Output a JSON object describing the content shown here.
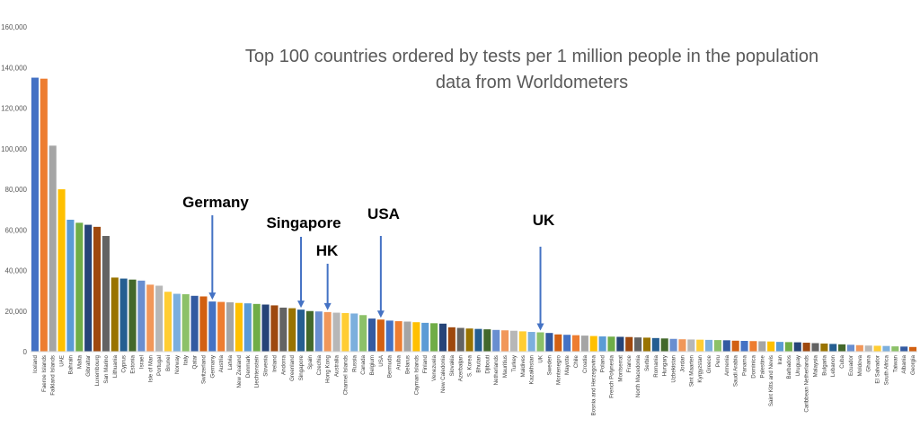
{
  "chart_data": {
    "type": "bar",
    "title_lines": [
      "Top 100 countries ordered by tests per 1 million people in the population",
      "data from Worldometers"
    ],
    "xlabel": "",
    "ylabel": "",
    "ylim": [
      0,
      160000
    ],
    "y_ticks": [
      "0",
      "20,000",
      "40,000",
      "60,000",
      "80,000",
      "100,000",
      "120,000",
      "140,000",
      "160,000"
    ],
    "grid": false,
    "legend": "none",
    "categories": [
      "Iceland",
      "Faeroe Islands",
      "Falkland Islands",
      "UAE",
      "Bahrain",
      "Malta",
      "Gibraltar",
      "Luxembourg",
      "San Marino",
      "Lithuania",
      "Cyprus",
      "Estonia",
      "Israel",
      "Isle of Man",
      "Portugal",
      "Brunei",
      "Norway",
      "Italy",
      "Qatar",
      "Switzerland",
      "Germany",
      "Austria",
      "Latvia",
      "New Zealand",
      "Denmark",
      "Liechtenstein",
      "Slovenia",
      "Ireland",
      "Andorra",
      "Greenland",
      "Singapore",
      "Spain",
      "Czechia",
      "Hong Kong",
      "Australia",
      "Channel Islands",
      "Russia",
      "Canada",
      "Belgium",
      "USA",
      "Bermuda",
      "Aruba",
      "Belarus",
      "Cayman Islands",
      "Finland",
      "Venezuela",
      "New Caledonia",
      "Slovakia",
      "Azerbaijan",
      "S. Korea",
      "Bhutan",
      "Djibouti",
      "Netherlands",
      "Mauritius",
      "Turkey",
      "Maldives",
      "Kazakhstan",
      "UK",
      "Sweden",
      "Montenegro",
      "Mayotte",
      "Chile",
      "Croatia",
      "Bosnia and Herzegovina",
      "Poland",
      "French Polynesia",
      "Montserrat",
      "France",
      "North Macedonia",
      "Serbia",
      "Romania",
      "Hungary",
      "Uzbekistan",
      "Jordan",
      "Sint Maarten",
      "Kyrgyzstan",
      "Greece",
      "Peru",
      "Armenia",
      "Saudi Arabia",
      "Panama",
      "Dominica",
      "Palestine",
      "Saint Kitts and Nevis",
      "Iran",
      "Barbados",
      "Uruguay",
      "Caribbean Netherlands",
      "Malaysia",
      "Bulgaria",
      "Lebanon",
      "Cuba",
      "Ecuador",
      "Moldova",
      "Ghana",
      "El Salvador",
      "South Africa",
      "Taiwan",
      "Albania",
      "Georgia"
    ],
    "values": [
      135000,
      134500,
      101500,
      80000,
      65000,
      63500,
      62500,
      61500,
      57000,
      36500,
      36000,
      35500,
      35000,
      33000,
      32500,
      29500,
      28500,
      28300,
      27500,
      27200,
      24700,
      24500,
      24300,
      24000,
      23800,
      23500,
      23200,
      22800,
      21700,
      21400,
      20700,
      20000,
      19800,
      19500,
      19200,
      19000,
      18800,
      18000,
      16300,
      15800,
      15300,
      15000,
      14800,
      14500,
      14200,
      14000,
      13800,
      12000,
      11700,
      11400,
      11200,
      11000,
      10700,
      10500,
      10300,
      10000,
      9700,
      9500,
      9200,
      8500,
      8300,
      8100,
      7900,
      7700,
      7500,
      7400,
      7300,
      7200,
      7000,
      6900,
      6700,
      6500,
      6300,
      6100,
      6000,
      5900,
      5800,
      5700,
      5600,
      5400,
      5300,
      5200,
      5100,
      5000,
      4800,
      4700,
      4600,
      4400,
      4200,
      4000,
      3800,
      3600,
      3400,
      3200,
      3000,
      2900,
      2800,
      2600,
      2500,
      2300
    ],
    "bar_colors": [
      "#4472C4",
      "#ED7D31",
      "#A5A5A5",
      "#FFC000",
      "#5B9BD5",
      "#70AD47",
      "#264478",
      "#9E480E",
      "#636363",
      "#997300",
      "#255E91",
      "#43682B",
      "#698ED0",
      "#F1975A",
      "#B7B7B7",
      "#FFCD33",
      "#7CAFDD",
      "#8CC168",
      "#335AA1",
      "#D26012"
    ],
    "annotations": [
      {
        "label": "Germany",
        "category": "Germany"
      },
      {
        "label": "Singapore",
        "category": "Singapore"
      },
      {
        "label": "HK",
        "category": "Hong Kong"
      },
      {
        "label": "USA",
        "category": "USA"
      },
      {
        "label": "UK",
        "category": "UK"
      }
    ],
    "arrow_color": "#4472C4"
  }
}
